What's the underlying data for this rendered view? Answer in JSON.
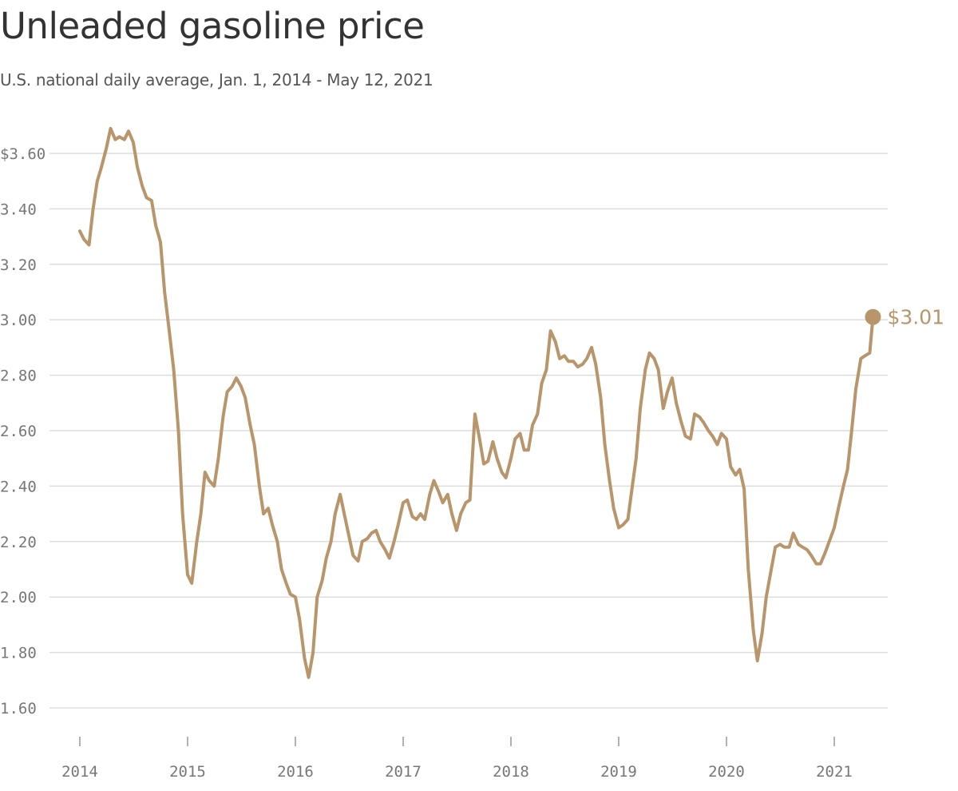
{
  "chart_data": {
    "type": "line",
    "title": "Unleaded gasoline price",
    "subtitle": "U.S. national daily average, Jan. 1, 2014 - May 12, 2021",
    "xlabel": "",
    "ylabel": "",
    "xlim": [
      "2014-01-01",
      "2021-06-30"
    ],
    "ylim": [
      1.5,
      3.75
    ],
    "y_ticks": [
      1.6,
      1.8,
      2.0,
      2.2,
      2.4,
      2.6,
      2.8,
      3.0,
      3.2,
      3.4,
      3.6
    ],
    "y_tick_labels": [
      "1.60",
      "1.80",
      "2.00",
      "2.20",
      "2.40",
      "2.60",
      "2.80",
      "3.00",
      "3.20",
      "3.40",
      "$3.60"
    ],
    "x_ticks": [
      "2014-01-01",
      "2015-01-01",
      "2016-01-01",
      "2017-01-01",
      "2018-01-01",
      "2019-01-01",
      "2020-01-01",
      "2021-01-01"
    ],
    "x_tick_labels": [
      "2014",
      "2015",
      "2016",
      "2017",
      "2018",
      "2019",
      "2020",
      "2021"
    ],
    "grid": "horizontal",
    "line_color": "#b8956a",
    "end_label": "$3.01",
    "series": [
      {
        "x": [
          "2014-01-01",
          "2014-01-15",
          "2014-02-01",
          "2014-02-15",
          "2014-03-01",
          "2014-03-15",
          "2014-04-01",
          "2014-04-15",
          "2014-05-01",
          "2014-05-15",
          "2014-06-01",
          "2014-06-15",
          "2014-07-01",
          "2014-07-15",
          "2014-08-01",
          "2014-08-15",
          "2014-09-01",
          "2014-09-15",
          "2014-10-01",
          "2014-10-15",
          "2014-11-01",
          "2014-11-15",
          "2014-12-01",
          "2014-12-15",
          "2015-01-01",
          "2015-01-15",
          "2015-02-01",
          "2015-02-15",
          "2015-03-01",
          "2015-03-15",
          "2015-04-01",
          "2015-04-15",
          "2015-05-01",
          "2015-05-15",
          "2015-06-01",
          "2015-06-15",
          "2015-07-01",
          "2015-07-15",
          "2015-08-01",
          "2015-08-15",
          "2015-09-01",
          "2015-09-15",
          "2015-10-01",
          "2015-10-15",
          "2015-11-01",
          "2015-11-15",
          "2015-12-01",
          "2015-12-15",
          "2016-01-01",
          "2016-01-15",
          "2016-02-01",
          "2016-02-15",
          "2016-03-01",
          "2016-03-15",
          "2016-04-01",
          "2016-04-15",
          "2016-05-01",
          "2016-05-15",
          "2016-06-01",
          "2016-06-15",
          "2016-07-01",
          "2016-07-15",
          "2016-08-01",
          "2016-08-15",
          "2016-09-01",
          "2016-09-15",
          "2016-10-01",
          "2016-10-15",
          "2016-11-01",
          "2016-11-15",
          "2016-12-01",
          "2016-12-15",
          "2017-01-01",
          "2017-01-15",
          "2017-02-01",
          "2017-02-15",
          "2017-03-01",
          "2017-03-15",
          "2017-04-01",
          "2017-04-15",
          "2017-05-01",
          "2017-05-15",
          "2017-06-01",
          "2017-06-15",
          "2017-07-01",
          "2017-07-15",
          "2017-08-01",
          "2017-08-15",
          "2017-09-01",
          "2017-09-15",
          "2017-10-01",
          "2017-10-15",
          "2017-11-01",
          "2017-11-15",
          "2017-12-01",
          "2017-12-15",
          "2018-01-01",
          "2018-01-15",
          "2018-02-01",
          "2018-02-15",
          "2018-03-01",
          "2018-03-15",
          "2018-04-01",
          "2018-04-15",
          "2018-05-01",
          "2018-05-15",
          "2018-06-01",
          "2018-06-15",
          "2018-07-01",
          "2018-07-15",
          "2018-08-01",
          "2018-08-15",
          "2018-09-01",
          "2018-09-15",
          "2018-10-01",
          "2018-10-15",
          "2018-11-01",
          "2018-11-15",
          "2018-12-01",
          "2018-12-15",
          "2019-01-01",
          "2019-01-15",
          "2019-02-01",
          "2019-02-15",
          "2019-03-01",
          "2019-03-15",
          "2019-04-01",
          "2019-04-15",
          "2019-05-01",
          "2019-05-15",
          "2019-06-01",
          "2019-06-15",
          "2019-07-01",
          "2019-07-15",
          "2019-08-01",
          "2019-08-15",
          "2019-09-01",
          "2019-09-15",
          "2019-10-01",
          "2019-10-15",
          "2019-11-01",
          "2019-11-15",
          "2019-12-01",
          "2019-12-15",
          "2020-01-01",
          "2020-01-15",
          "2020-02-01",
          "2020-02-15",
          "2020-03-01",
          "2020-03-15",
          "2020-04-01",
          "2020-04-15",
          "2020-05-01",
          "2020-05-15",
          "2020-06-01",
          "2020-06-15",
          "2020-07-01",
          "2020-07-15",
          "2020-08-01",
          "2020-08-15",
          "2020-09-01",
          "2020-09-15",
          "2020-10-01",
          "2020-10-15",
          "2020-11-01",
          "2020-11-15",
          "2020-12-01",
          "2020-12-15",
          "2021-01-01",
          "2021-01-15",
          "2021-02-01",
          "2021-02-15",
          "2021-03-01",
          "2021-03-15",
          "2021-04-01",
          "2021-04-15",
          "2021-05-01",
          "2021-05-12"
        ],
        "values": [
          3.32,
          3.29,
          3.27,
          3.4,
          3.5,
          3.55,
          3.62,
          3.69,
          3.65,
          3.66,
          3.65,
          3.68,
          3.64,
          3.55,
          3.48,
          3.44,
          3.43,
          3.34,
          3.28,
          3.1,
          2.95,
          2.82,
          2.6,
          2.3,
          2.08,
          2.05,
          2.2,
          2.3,
          2.45,
          2.42,
          2.4,
          2.5,
          2.65,
          2.74,
          2.76,
          2.79,
          2.76,
          2.72,
          2.62,
          2.55,
          2.4,
          2.3,
          2.32,
          2.26,
          2.2,
          2.1,
          2.05,
          2.01,
          2.0,
          1.92,
          1.78,
          1.71,
          1.8,
          2.0,
          2.06,
          2.14,
          2.2,
          2.3,
          2.37,
          2.3,
          2.22,
          2.15,
          2.13,
          2.2,
          2.21,
          2.23,
          2.24,
          2.2,
          2.17,
          2.14,
          2.2,
          2.26,
          2.34,
          2.35,
          2.29,
          2.28,
          2.3,
          2.28,
          2.37,
          2.42,
          2.38,
          2.34,
          2.37,
          2.3,
          2.24,
          2.3,
          2.34,
          2.35,
          2.66,
          2.58,
          2.48,
          2.49,
          2.56,
          2.5,
          2.45,
          2.43,
          2.5,
          2.57,
          2.59,
          2.53,
          2.53,
          2.62,
          2.66,
          2.77,
          2.82,
          2.96,
          2.92,
          2.86,
          2.87,
          2.85,
          2.85,
          2.83,
          2.84,
          2.86,
          2.9,
          2.84,
          2.72,
          2.55,
          2.42,
          2.32,
          2.25,
          2.26,
          2.28,
          2.39,
          2.5,
          2.68,
          2.82,
          2.88,
          2.86,
          2.82,
          2.68,
          2.74,
          2.79,
          2.7,
          2.63,
          2.58,
          2.57,
          2.66,
          2.65,
          2.63,
          2.6,
          2.58,
          2.55,
          2.59,
          2.57,
          2.47,
          2.44,
          2.46,
          2.39,
          2.1,
          1.88,
          1.77,
          1.87,
          2.0,
          2.1,
          2.18,
          2.19,
          2.18,
          2.18,
          2.23,
          2.19,
          2.18,
          2.17,
          2.15,
          2.12,
          2.12,
          2.16,
          2.2,
          2.25,
          2.32,
          2.4,
          2.46,
          2.6,
          2.75,
          2.86,
          2.87,
          2.88,
          3.01
        ]
      }
    ]
  }
}
